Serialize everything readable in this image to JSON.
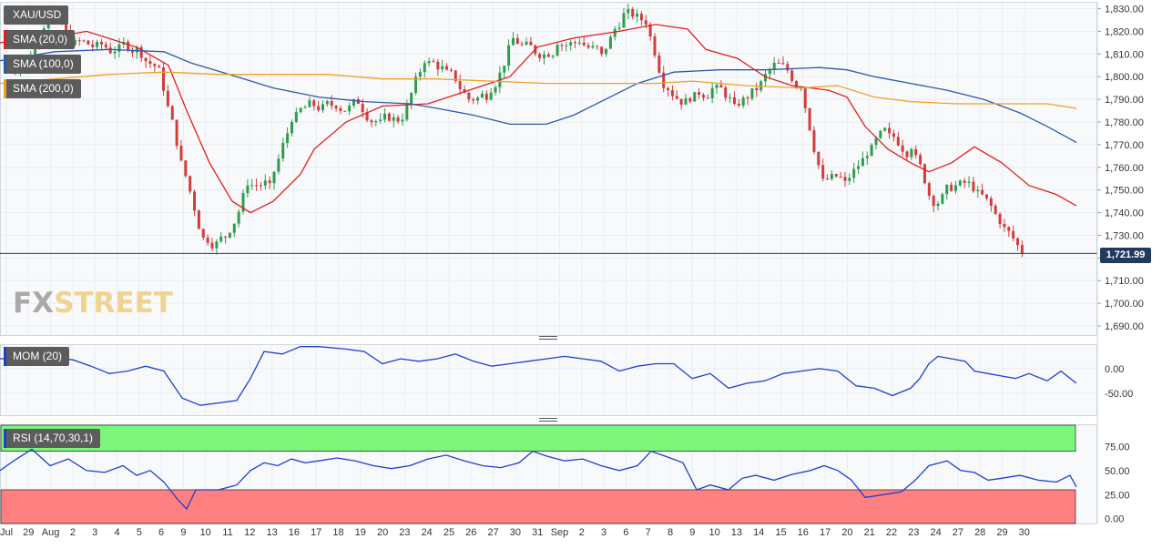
{
  "instrument": "XAU/USD",
  "legend": {
    "sma20": {
      "label": "SMA (20,0)",
      "color": "#e02020"
    },
    "sma100": {
      "label": "SMA (100,0)",
      "color": "#2c5aa8"
    },
    "sma200": {
      "label": "SMA (200,0)",
      "color": "#f0a020"
    },
    "mom": {
      "label": "MOM (20)",
      "color": "#1f3fd0"
    },
    "rsi": {
      "label": "RSI (14,70,30,1)",
      "color": "#1f3fd0"
    }
  },
  "last_price_label": "1,721.99",
  "watermark": {
    "part1": "FX",
    "part2": "STREET"
  },
  "chart_data": [
    {
      "type": "candlestick",
      "title": "XAU/USD",
      "y_ticks": [
        "1,690.00",
        "1,700.00",
        "1,710.00",
        "1,720.00",
        "1,730.00",
        "1,740.00",
        "1,750.00",
        "1,760.00",
        "1,770.00",
        "1,780.00",
        "1,790.00",
        "1,800.00",
        "1,810.00",
        "1,820.00",
        "1,830.00"
      ],
      "ylim": [
        1686,
        1833
      ],
      "x_tick_labels": [
        "Jul",
        "29",
        "Aug",
        "2",
        "3",
        "4",
        "5",
        "6",
        "9",
        "10",
        "11",
        "12",
        "13",
        "16",
        "17",
        "18",
        "19",
        "20",
        "23",
        "24",
        "25",
        "26",
        "27",
        "30",
        "31",
        "Sep",
        "2",
        "3",
        "6",
        "7",
        "8",
        "9",
        "10",
        "13",
        "14",
        "15",
        "16",
        "17",
        "20",
        "21",
        "22",
        "23",
        "24",
        "27",
        "28",
        "29",
        "30"
      ],
      "last_price": 1721.99,
      "colors": {
        "up": "#2e9e4e",
        "down": "#d23c3c",
        "last_line": "#233a5f"
      },
      "daily_close": {
        "Jul 28": 1806,
        "Jul 29": 1830,
        "Jul 30": 1814,
        "Aug 2": 1813,
        "Aug 3": 1811,
        "Aug 4": 1813,
        "Aug 5": 1804,
        "Aug 6": 1763,
        "Aug 9": 1729,
        "Aug 10": 1729,
        "Aug 11": 1752,
        "Aug 12": 1753,
        "Aug 13": 1780,
        "Aug 16": 1787,
        "Aug 17": 1786,
        "Aug 18": 1788,
        "Aug 19": 1781,
        "Aug 20": 1781,
        "Aug 23": 1806,
        "Aug 24": 1803,
        "Aug 25": 1790,
        "Aug 26": 1793,
        "Aug 27": 1817,
        "Aug 30": 1810,
        "Aug 31": 1814,
        "Sep 1": 1815,
        "Sep 2": 1810,
        "Sep 3": 1828,
        "Sep 6": 1823,
        "Sep 7": 1794,
        "Sep 8": 1789,
        "Sep 9": 1795,
        "Sep 10": 1788,
        "Sep 13": 1794,
        "Sep 14": 1806,
        "Sep 15": 1795,
        "Sep 16": 1755,
        "Sep 17": 1754,
        "Sep 20": 1765,
        "Sep 21": 1775,
        "Sep 22": 1768,
        "Sep 23": 1743,
        "Sep 24": 1752,
        "Sep 27": 1750,
        "Sep 28": 1735,
        "Sep 29": 1722
      },
      "series": [
        {
          "name": "SMA (20,0)",
          "color": "#e02020",
          "points": [
            [
              0,
              1815
            ],
            [
              55,
              1817
            ],
            [
              95,
              1820
            ],
            [
              150,
              1813
            ],
            [
              185,
              1805
            ],
            [
              205,
              1785
            ],
            [
              230,
              1762
            ],
            [
              255,
              1745
            ],
            [
              275,
              1740
            ],
            [
              300,
              1745
            ],
            [
              330,
              1757
            ],
            [
              345,
              1768
            ],
            [
              380,
              1780
            ],
            [
              420,
              1787
            ],
            [
              470,
              1788
            ],
            [
              500,
              1792
            ],
            [
              530,
              1796
            ],
            [
              560,
              1800
            ],
            [
              590,
              1813
            ],
            [
              630,
              1817
            ],
            [
              680,
              1820
            ],
            [
              720,
              1823
            ],
            [
              755,
              1821
            ],
            [
              775,
              1812
            ],
            [
              810,
              1808
            ],
            [
              840,
              1800
            ],
            [
              870,
              1796
            ],
            [
              910,
              1794
            ],
            [
              930,
              1791
            ],
            [
              950,
              1778
            ],
            [
              975,
              1768
            ],
            [
              1000,
              1762
            ],
            [
              1020,
              1758
            ],
            [
              1045,
              1762
            ],
            [
              1070,
              1769
            ],
            [
              1100,
              1762
            ],
            [
              1130,
              1752
            ],
            [
              1160,
              1748
            ],
            [
              1182,
              1743
            ]
          ]
        },
        {
          "name": "SMA (100,0)",
          "color": "#2c5aa8",
          "points": [
            [
              0,
              1807
            ],
            [
              60,
              1811
            ],
            [
              120,
              1812
            ],
            [
              180,
              1811
            ],
            [
              210,
              1806
            ],
            [
              260,
              1800
            ],
            [
              300,
              1795
            ],
            [
              350,
              1791
            ],
            [
              400,
              1789
            ],
            [
              450,
              1788
            ],
            [
              480,
              1786
            ],
            [
              520,
              1783
            ],
            [
              560,
              1779
            ],
            [
              600,
              1779
            ],
            [
              630,
              1783
            ],
            [
              665,
              1790
            ],
            [
              700,
              1797
            ],
            [
              740,
              1802
            ],
            [
              790,
              1803
            ],
            [
              840,
              1803
            ],
            [
              900,
              1804
            ],
            [
              930,
              1803
            ],
            [
              960,
              1800
            ],
            [
              1000,
              1797
            ],
            [
              1040,
              1794
            ],
            [
              1080,
              1790
            ],
            [
              1120,
              1784
            ],
            [
              1150,
              1778
            ],
            [
              1182,
              1771
            ]
          ]
        },
        {
          "name": "SMA (200,0)",
          "color": "#f0a020",
          "points": [
            [
              0,
              1797
            ],
            [
              60,
              1799
            ],
            [
              120,
              1801
            ],
            [
              180,
              1802
            ],
            [
              240,
              1801
            ],
            [
              300,
              1801
            ],
            [
              360,
              1801
            ],
            [
              420,
              1799
            ],
            [
              480,
              1799
            ],
            [
              540,
              1798
            ],
            [
              600,
              1797
            ],
            [
              660,
              1797
            ],
            [
              720,
              1797
            ],
            [
              760,
              1798
            ],
            [
              820,
              1796
            ],
            [
              880,
              1795
            ],
            [
              920,
              1796
            ],
            [
              960,
              1791
            ],
            [
              1000,
              1789
            ],
            [
              1050,
              1788
            ],
            [
              1100,
              1788
            ],
            [
              1150,
              1788
            ],
            [
              1182,
              1786
            ]
          ]
        }
      ]
    },
    {
      "type": "line",
      "title": "MOM (20)",
      "y_ticks": [
        "0.00",
        "-50.00"
      ],
      "ylim": [
        -95,
        50
      ],
      "series": [
        {
          "name": "MOM (20)",
          "color": "#1f3fd0",
          "points": [
            [
              0,
              20
            ],
            [
              40,
              25
            ],
            [
              80,
              18
            ],
            [
              100,
              5
            ],
            [
              120,
              -10
            ],
            [
              140,
              -5
            ],
            [
              160,
              5
            ],
            [
              180,
              -5
            ],
            [
              200,
              -60
            ],
            [
              220,
              -75
            ],
            [
              240,
              -70
            ],
            [
              260,
              -65
            ],
            [
              275,
              -20
            ],
            [
              290,
              35
            ],
            [
              310,
              30
            ],
            [
              330,
              45
            ],
            [
              350,
              45
            ],
            [
              380,
              40
            ],
            [
              400,
              35
            ],
            [
              420,
              10
            ],
            [
              440,
              20
            ],
            [
              460,
              15
            ],
            [
              480,
              20
            ],
            [
              500,
              30
            ],
            [
              520,
              15
            ],
            [
              540,
              5
            ],
            [
              560,
              10
            ],
            [
              580,
              15
            ],
            [
              600,
              20
            ],
            [
              620,
              25
            ],
            [
              640,
              20
            ],
            [
              660,
              15
            ],
            [
              680,
              -5
            ],
            [
              700,
              5
            ],
            [
              720,
              10
            ],
            [
              740,
              10
            ],
            [
              760,
              -20
            ],
            [
              780,
              -10
            ],
            [
              800,
              -40
            ],
            [
              820,
              -30
            ],
            [
              840,
              -25
            ],
            [
              860,
              -10
            ],
            [
              880,
              -5
            ],
            [
              900,
              0
            ],
            [
              920,
              -5
            ],
            [
              940,
              -35
            ],
            [
              960,
              -40
            ],
            [
              980,
              -55
            ],
            [
              1000,
              -40
            ],
            [
              1010,
              -20
            ],
            [
              1020,
              10
            ],
            [
              1030,
              25
            ],
            [
              1045,
              20
            ],
            [
              1060,
              15
            ],
            [
              1070,
              -5
            ],
            [
              1085,
              -10
            ],
            [
              1100,
              -15
            ],
            [
              1115,
              -20
            ],
            [
              1130,
              -10
            ],
            [
              1150,
              -25
            ],
            [
              1165,
              -5
            ],
            [
              1182,
              -30
            ]
          ]
        }
      ]
    },
    {
      "type": "line",
      "title": "RSI (14,70,30,1)",
      "y_ticks": [
        "0.00",
        "25.00",
        "50.00",
        "75.00"
      ],
      "ylim": [
        -5,
        98
      ],
      "overbought": 70,
      "oversold": 30,
      "zone_colors": {
        "overbought": "#7cf57a",
        "oversold": "#ff8080"
      },
      "series": [
        {
          "name": "RSI (14,70,30,1)",
          "color": "#1f3fd0",
          "points": [
            [
              0,
              50
            ],
            [
              15,
              60
            ],
            [
              35,
              72
            ],
            [
              55,
              55
            ],
            [
              75,
              62
            ],
            [
              95,
              50
            ],
            [
              115,
              48
            ],
            [
              135,
              55
            ],
            [
              150,
              45
            ],
            [
              165,
              50
            ],
            [
              180,
              38
            ],
            [
              195,
              20
            ],
            [
              205,
              10
            ],
            [
              215,
              30
            ],
            [
              240,
              30
            ],
            [
              260,
              35
            ],
            [
              275,
              50
            ],
            [
              290,
              58
            ],
            [
              305,
              55
            ],
            [
              320,
              62
            ],
            [
              335,
              58
            ],
            [
              350,
              60
            ],
            [
              370,
              63
            ],
            [
              390,
              60
            ],
            [
              410,
              55
            ],
            [
              430,
              52
            ],
            [
              450,
              55
            ],
            [
              470,
              62
            ],
            [
              490,
              66
            ],
            [
              510,
              60
            ],
            [
              530,
              55
            ],
            [
              550,
              53
            ],
            [
              570,
              58
            ],
            [
              585,
              70
            ],
            [
              600,
              65
            ],
            [
              620,
              60
            ],
            [
              640,
              62
            ],
            [
              660,
              55
            ],
            [
              680,
              50
            ],
            [
              700,
              55
            ],
            [
              715,
              70
            ],
            [
              730,
              65
            ],
            [
              750,
              58
            ],
            [
              765,
              30
            ],
            [
              780,
              35
            ],
            [
              800,
              30
            ],
            [
              815,
              42
            ],
            [
              830,
              45
            ],
            [
              850,
              40
            ],
            [
              870,
              46
            ],
            [
              890,
              50
            ],
            [
              905,
              55
            ],
            [
              920,
              50
            ],
            [
              935,
              40
            ],
            [
              950,
              22
            ],
            [
              970,
              25
            ],
            [
              990,
              28
            ],
            [
              1005,
              40
            ],
            [
              1020,
              55
            ],
            [
              1040,
              60
            ],
            [
              1055,
              50
            ],
            [
              1070,
              48
            ],
            [
              1085,
              40
            ],
            [
              1100,
              42
            ],
            [
              1120,
              45
            ],
            [
              1140,
              40
            ],
            [
              1160,
              38
            ],
            [
              1175,
              45
            ],
            [
              1182,
              33
            ]
          ]
        }
      ]
    }
  ]
}
